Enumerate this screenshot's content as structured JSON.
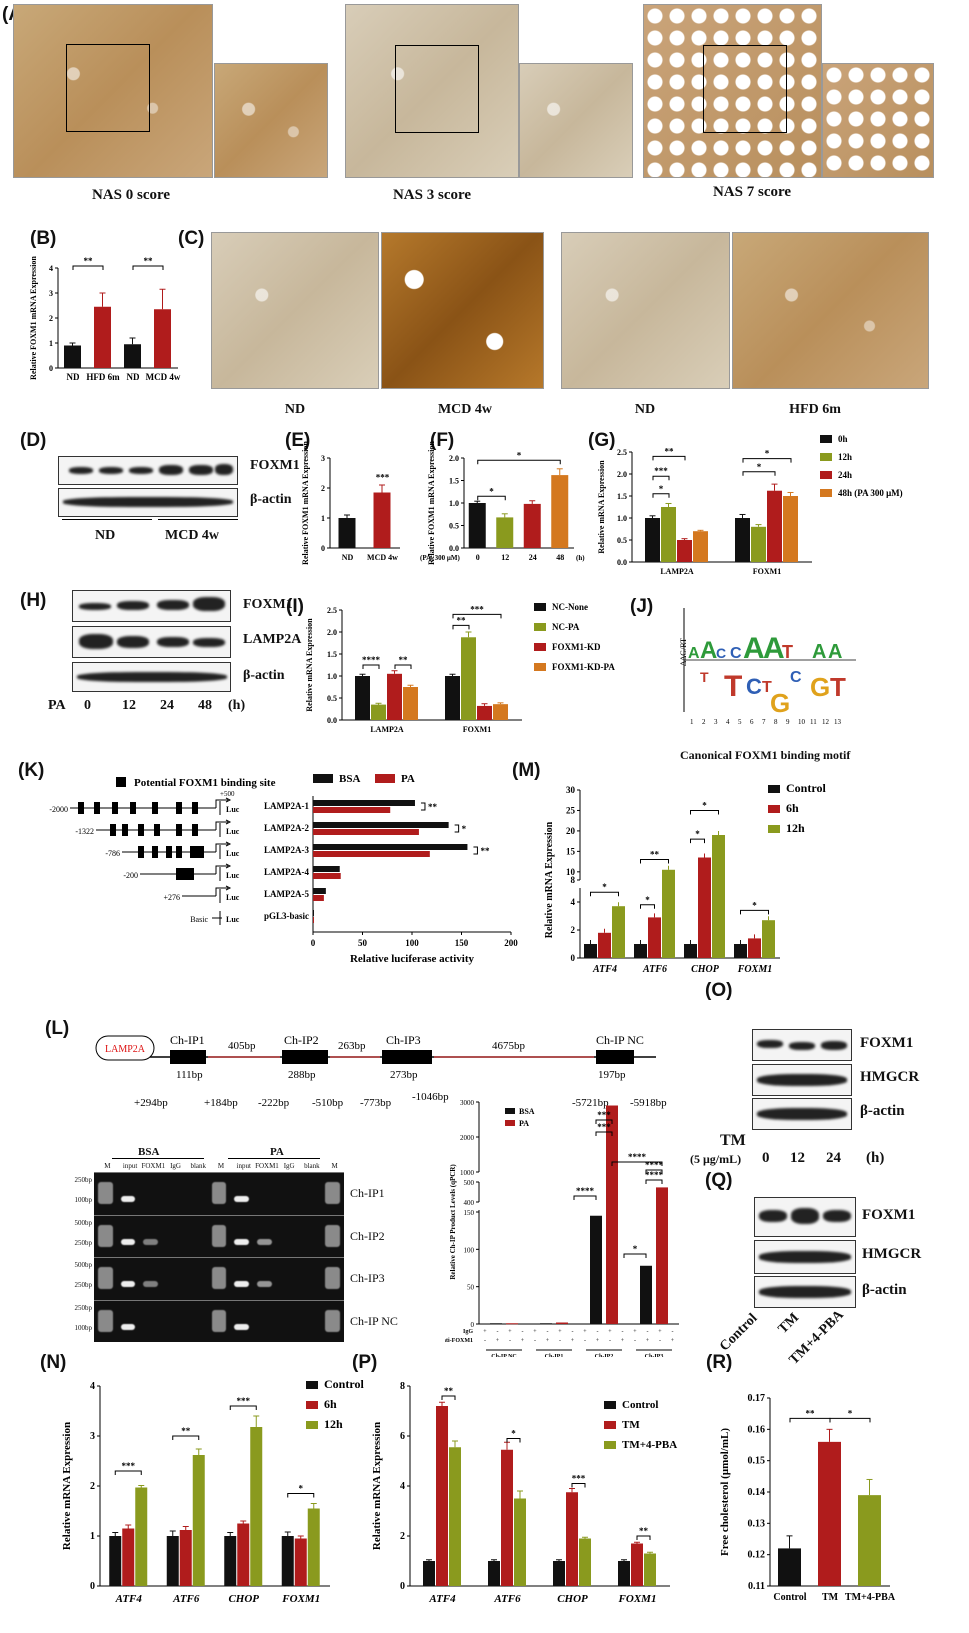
{
  "panels": {
    "A": "(A)",
    "B": "(B)",
    "C": "(C)",
    "D": "(D)",
    "E": "(E)",
    "F": "(F)",
    "G": "(G)",
    "H": "(H)",
    "I": "(I)",
    "J": "(J)",
    "K": "(K)",
    "L": "(L)",
    "M": "(M)",
    "N": "(N)",
    "O": "(O)",
    "P": "(P)",
    "Q": "(Q)",
    "R": "(R)"
  },
  "panel_a": {
    "captions": [
      "NAS 0 score",
      "NAS 3 score",
      "NAS 7 score"
    ]
  },
  "panel_c": {
    "captions": [
      "ND",
      "MCD 4w",
      "ND",
      "HFD 6m"
    ]
  },
  "panel_d": {
    "bands": [
      "FOXM1",
      "β-actin"
    ],
    "groups": [
      "ND",
      "MCD 4w"
    ]
  },
  "panel_h": {
    "bands": [
      "FOXM1",
      "LAMP2A",
      "β-actin"
    ],
    "pa_label": "PA",
    "times": [
      "0",
      "12",
      "24",
      "48"
    ],
    "unit": "(h)"
  },
  "panel_j": {
    "title": "Canonical FOXM1 binding motif",
    "ylabel": "ΔΔG/RT",
    "positions": [
      "1",
      "2",
      "3",
      "4",
      "5",
      "6",
      "7",
      "8",
      "9",
      "10",
      "11",
      "12",
      "13"
    ]
  },
  "panel_k": {
    "legend_site": "Potential FOXM1 binding site",
    "constructs": [
      {
        "start": "-2000",
        "name": "LAMP2A-1"
      },
      {
        "start": "-1322",
        "name": "LAMP2A-2"
      },
      {
        "start": "-786",
        "name": "LAMP2A-3"
      },
      {
        "start": "-200",
        "name": "LAMP2A-4"
      },
      {
        "start": "+276",
        "name": "LAMP2A-5"
      },
      {
        "start": "Basic",
        "name": "pGL3-basic"
      }
    ],
    "end": "+500",
    "luc": "Luc",
    "sig": [
      "**",
      "*",
      "**"
    ]
  },
  "panel_l": {
    "gene": "LAMP2A",
    "sites": [
      "Ch-IP1",
      "Ch-IP2",
      "Ch-IP3",
      "Ch-IP NC"
    ],
    "spacers": [
      "405bp",
      "263bp",
      "4675bp"
    ],
    "lengths": [
      "111bp",
      "288bp",
      "273bp",
      "197bp"
    ],
    "coords": [
      "+294bp",
      "+184bp",
      "-222bp",
      "-510bp",
      "-773bp",
      "-1046bp",
      "-5721bp",
      "-5918bp"
    ],
    "gel_groups": [
      "BSA",
      "PA"
    ],
    "lanes": [
      "M",
      "input",
      "FOXM1",
      "IgG",
      "blank",
      "M",
      "input",
      "FOXM1",
      "IgG",
      "blank",
      "M"
    ],
    "gel_rows": [
      "Ch-IP1",
      "Ch-IP2",
      "Ch-IP3",
      "Ch-IP NC"
    ],
    "markers": [
      [
        "250bp",
        "100bp"
      ],
      [
        "500bp",
        "250bp"
      ],
      [
        "500bp",
        "250bp"
      ],
      [
        "250bp",
        "100bp"
      ]
    ]
  },
  "panel_o": {
    "bands": [
      "FOXM1",
      "HMGCR",
      "β-actin"
    ],
    "tm": "TM",
    "dose": "(5 μg/mL)",
    "times": [
      "0",
      "12",
      "24"
    ],
    "unit": "(h)"
  },
  "panel_q": {
    "bands": [
      "FOXM1",
      "HMGCR",
      "β-actin"
    ],
    "groups": [
      "Control",
      "TM",
      "TM+4-PBA"
    ]
  },
  "chart_data": [
    {
      "id": "B",
      "type": "bar",
      "ylabel": "Relative FOXM1 mRNA Expression",
      "categories": [
        "ND",
        "HFD 6m",
        "ND",
        "MCD 4w"
      ],
      "values": [
        0.9,
        2.45,
        0.95,
        2.35
      ],
      "errors": [
        0.1,
        0.55,
        0.25,
        0.8
      ],
      "colors": [
        "#111111",
        "#b01c1c",
        "#111111",
        "#b01c1c"
      ],
      "ylim": [
        0,
        4
      ],
      "yticks": [
        "0",
        "1",
        "2",
        "3",
        "4"
      ],
      "sig": [
        "**",
        "**"
      ]
    },
    {
      "id": "E",
      "type": "bar",
      "ylabel": "Relative FOXM1 mRNA Expression",
      "categories": [
        "ND",
        "MCD 4w"
      ],
      "values": [
        1.0,
        1.85
      ],
      "errors": [
        0.1,
        0.25
      ],
      "colors": [
        "#111111",
        "#b01c1c"
      ],
      "ylim": [
        0,
        3
      ],
      "yticks": [
        "0",
        "1",
        "2",
        "3"
      ],
      "sig": [
        "***"
      ]
    },
    {
      "id": "F",
      "type": "bar",
      "ylabel": "Relative FOXM1 mRNA Expression",
      "xprefix": "(PA, 300 μM)",
      "xunit": "(h)",
      "categories": [
        "0",
        "12",
        "24",
        "48"
      ],
      "values": [
        1.0,
        0.68,
        0.98,
        1.62
      ],
      "errors": [
        0.04,
        0.08,
        0.07,
        0.14
      ],
      "colors": [
        "#111111",
        "#8a9a1e",
        "#b01c1c",
        "#d4781f"
      ],
      "ylim": [
        0,
        2.0
      ],
      "yticks": [
        "0.0",
        "0.5",
        "1.0",
        "1.5",
        "2.0"
      ],
      "sig": [
        "*",
        "*"
      ]
    },
    {
      "id": "G",
      "type": "bar",
      "ylabel": "Relative mRNA Expression",
      "categories": [
        "LAMP2A",
        "FOXM1"
      ],
      "series": [
        {
          "name": "0h",
          "values": [
            1.0,
            1.0
          ]
        },
        {
          "name": "12h",
          "values": [
            1.25,
            0.8
          ]
        },
        {
          "name": "24h",
          "values": [
            0.5,
            1.62
          ]
        },
        {
          "name": "48h (PA 300 μM)",
          "values": [
            0.7,
            1.5
          ]
        }
      ],
      "errors": [
        [
          0.05,
          0.08
        ],
        [
          0.08,
          0.05
        ],
        [
          0.03,
          0.15
        ],
        [
          0.02,
          0.08
        ]
      ],
      "colors": [
        "#111111",
        "#8a9a1e",
        "#b01c1c",
        "#d4781f"
      ],
      "ylim": [
        0,
        2.5
      ],
      "yticks": [
        "0.0",
        "0.5",
        "1.0",
        "1.5",
        "2.0",
        "2.5"
      ],
      "sig": [
        "**",
        "***",
        "*",
        "*",
        "*"
      ]
    },
    {
      "id": "I",
      "type": "bar",
      "ylabel": "Relative mRNA Expression",
      "categories": [
        "LAMP2A",
        "FOXM1"
      ],
      "series": [
        {
          "name": "NC-None",
          "values": [
            1.0,
            1.0
          ]
        },
        {
          "name": "NC-PA",
          "values": [
            0.35,
            1.88
          ]
        },
        {
          "name": "FOXM1-KD",
          "values": [
            1.05,
            0.32
          ]
        },
        {
          "name": "FOXM1-KD-PA",
          "values": [
            0.75,
            0.36
          ]
        }
      ],
      "errors": [
        [
          0.04,
          0.04
        ],
        [
          0.03,
          0.12
        ],
        [
          0.07,
          0.05
        ],
        [
          0.04,
          0.03
        ]
      ],
      "colors": [
        "#111111",
        "#8a9a1e",
        "#b01c1c",
        "#d4781f"
      ],
      "ylim": [
        0,
        2.5
      ],
      "yticks": [
        "0.0",
        "0.5",
        "1.0",
        "1.5",
        "2.0",
        "2.5"
      ],
      "sig": [
        "****",
        "**",
        "***",
        "**"
      ]
    },
    {
      "id": "K",
      "type": "bar",
      "orientation": "horizontal",
      "xlabel": "Relative luciferase activity",
      "categories": [
        "LAMP2A-1",
        "LAMP2A-2",
        "LAMP2A-3",
        "LAMP2A-4",
        "LAMP2A-5",
        "pGL3-basic"
      ],
      "series": [
        {
          "name": "BSA",
          "values": [
            103,
            137,
            156,
            27,
            13,
            1
          ]
        },
        {
          "name": "PA",
          "values": [
            78,
            107,
            118,
            28,
            11,
            1
          ]
        }
      ],
      "colors": [
        "#111111",
        "#b01c1c"
      ],
      "xlim": [
        0,
        200
      ],
      "xticks": [
        "0",
        "50",
        "100",
        "150",
        "200"
      ]
    },
    {
      "id": "M",
      "type": "bar",
      "ylabel": "Relative mRNA Expression",
      "categories": [
        "ATF4",
        "ATF6",
        "CHOP",
        "FOXM1"
      ],
      "series": [
        {
          "name": "Control",
          "values": [
            1.0,
            1.0,
            1.0,
            1.0
          ]
        },
        {
          "name": "6h",
          "values": [
            1.8,
            2.9,
            13.5,
            1.4
          ]
        },
        {
          "name": "12h",
          "values": [
            3.7,
            10.5,
            19.0,
            2.7
          ]
        }
      ],
      "colors": [
        "#111111",
        "#b01c1c",
        "#8a9a1e"
      ],
      "yticks": [
        "0",
        "2",
        "4",
        "8",
        "10",
        "15",
        "20",
        "25",
        "30"
      ],
      "sig": [
        "*",
        "*",
        "**",
        "*",
        "*",
        "*"
      ]
    },
    {
      "id": "N",
      "type": "bar",
      "ylabel": "Relative mRNA Expression",
      "categories": [
        "ATF4",
        "ATF6",
        "CHOP",
        "FOXM1"
      ],
      "series": [
        {
          "name": "Control",
          "values": [
            1.0,
            1.0,
            1.0,
            1.0
          ]
        },
        {
          "name": "6h",
          "values": [
            1.15,
            1.12,
            1.25,
            0.95
          ]
        },
        {
          "name": "12h",
          "values": [
            1.97,
            2.62,
            3.18,
            1.55
          ]
        }
      ],
      "errors": [
        [
          0.07,
          0.1,
          0.07,
          0.08
        ],
        [
          0.07,
          0.07,
          0.05,
          0.05
        ],
        [
          0.04,
          0.12,
          0.22,
          0.1
        ]
      ],
      "colors": [
        "#111111",
        "#b01c1c",
        "#8a9a1e"
      ],
      "ylim": [
        0,
        4
      ],
      "yticks": [
        "0",
        "1",
        "2",
        "3",
        "4"
      ],
      "sig": [
        "***",
        "**",
        "***",
        "*"
      ]
    },
    {
      "id": "P",
      "type": "bar",
      "ylabel": "Relative mRNA Expression",
      "categories": [
        "ATF4",
        "ATF6",
        "CHOP",
        "FOXM1"
      ],
      "series": [
        {
          "name": "Control",
          "values": [
            1.0,
            1.0,
            1.0,
            1.0
          ]
        },
        {
          "name": "TM",
          "values": [
            7.2,
            5.45,
            3.75,
            1.7
          ]
        },
        {
          "name": "TM+4-PBA",
          "values": [
            5.55,
            3.5,
            1.9,
            1.3
          ]
        }
      ],
      "errors": [
        [
          0.05,
          0.05,
          0.05,
          0.05
        ],
        [
          0.15,
          0.3,
          0.15,
          0.05
        ],
        [
          0.25,
          0.3,
          0.05,
          0.05
        ]
      ],
      "colors": [
        "#111111",
        "#b01c1c",
        "#8a9a1e"
      ],
      "ylim": [
        0,
        8
      ],
      "yticks": [
        "0",
        "2",
        "4",
        "6",
        "8"
      ],
      "sig": [
        "**",
        "*",
        "***",
        "**"
      ]
    },
    {
      "id": "R",
      "type": "bar",
      "ylabel": "Free cholesterol (μmol/mL)",
      "categories": [
        "Control",
        "TM",
        "TM+4-PBA"
      ],
      "values": [
        0.122,
        0.156,
        0.139
      ],
      "errors": [
        0.004,
        0.004,
        0.005
      ],
      "colors": [
        "#111111",
        "#b01c1c",
        "#8a9a1e"
      ],
      "ylim": [
        0.11,
        0.17
      ],
      "yticks": [
        "0.11",
        "0.12",
        "0.13",
        "0.14",
        "0.15",
        "0.16",
        "0.17"
      ],
      "sig": [
        "**",
        "*"
      ]
    },
    {
      "id": "L-qPCR",
      "type": "bar",
      "ylabel": "Relative Ch-IP Product Levels (qPCR)",
      "categories": [
        "Ch-IP NC",
        "Ch-IP1",
        "Ch-IP2",
        "Ch-IP3"
      ],
      "series": [
        {
          "name": "BSA",
          "values": [
            1,
            1,
            145,
            78
          ]
        },
        {
          "name": "PA",
          "values": [
            1,
            2,
            2900,
            560
          ]
        }
      ],
      "colors": [
        "#111111",
        "#b01c1c"
      ],
      "yticks": [
        "0",
        "50",
        "100",
        "150",
        "400",
        "500",
        "1000",
        "2000",
        "3000"
      ],
      "rows": [
        "IgG",
        "anti-FOXM1"
      ],
      "row_values": [
        [
          "+",
          "-",
          "+",
          "-",
          "+",
          "-",
          "+",
          "-",
          "+",
          "-",
          "+",
          "-",
          "+",
          "-",
          "+",
          "-"
        ],
        [
          "-",
          "+",
          "-",
          "+",
          "-",
          "+",
          "-",
          "+",
          "-",
          "+",
          "-",
          "+",
          "-",
          "+",
          "-",
          "+"
        ]
      ],
      "sig": [
        "***",
        "***",
        "****",
        "****",
        "****",
        "*",
        "****"
      ]
    }
  ]
}
